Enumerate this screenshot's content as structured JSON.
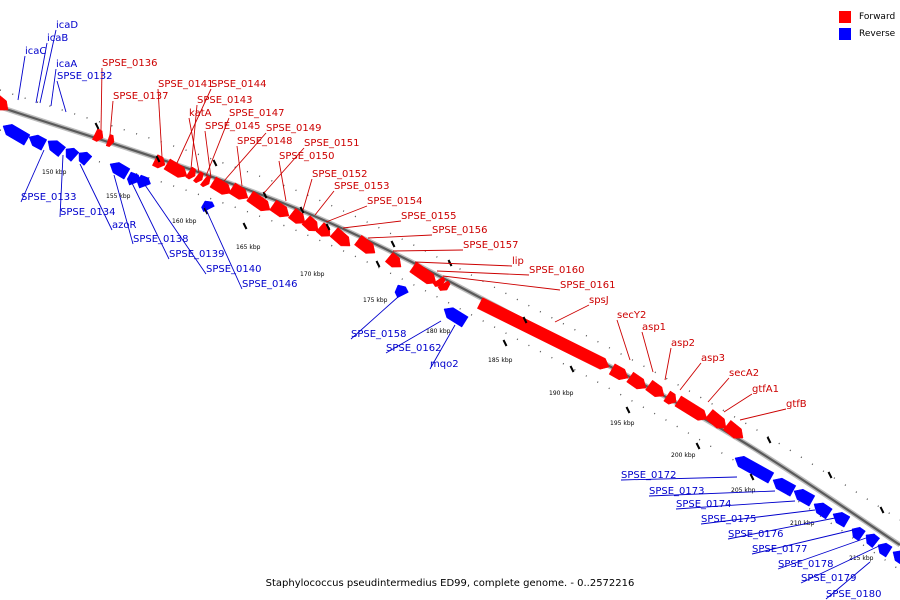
{
  "legend": [
    {
      "label": "Forward",
      "color": "#ff0000"
    },
    {
      "label": "Reverse",
      "color": "#0000ff"
    }
  ],
  "footer": "Staphylococcus pseudintermedius ED99, complete genome. - 0..2572216",
  "ticks": [
    "150 kbp",
    "155 kbp",
    "160 kbp",
    "165 kbp",
    "170 kbp",
    "175 kbp",
    "180 kbp",
    "185 kbp",
    "190 kbp",
    "195 kbp",
    "200 kbp",
    "205 kbp",
    "210 kbp",
    "215 kbp"
  ],
  "colors": {
    "forward": "#ff0000",
    "reverse": "#0000ff",
    "forward_label": "#cc0000",
    "reverse_label": "#0000cc"
  },
  "forward_genes": [
    "SPSE_0136",
    "SPSE_0137",
    "SPSE_0141",
    "SPSE_0144",
    "SPSE_0143",
    "katA",
    "SPSE_0147",
    "SPSE_0145",
    "SPSE_0149",
    "SPSE_0148",
    "SPSE_0151",
    "SPSE_0150",
    "SPSE_0152",
    "SPSE_0153",
    "SPSE_0154",
    "SPSE_0155",
    "SPSE_0156",
    "SPSE_0157",
    "lip",
    "SPSE_0160",
    "SPSE_0161",
    "spsJ",
    "secY2",
    "asp1",
    "asp2",
    "asp3",
    "secA2",
    "gtfA1",
    "gtfB"
  ],
  "reverse_genes": [
    "icaD",
    "icaB",
    "icaC",
    "icaA",
    "SPSE_0132",
    "SPSE_0133",
    "SPSE_0134",
    "azoR",
    "SPSE_0138",
    "SPSE_0139",
    "SPSE_0140",
    "SPSE_0146",
    "SPSE_0158",
    "SPSE_0162",
    "mqo2",
    "SPSE_0172",
    "SPSE_0173",
    "SPSE_0174",
    "SPSE_0175",
    "SPSE_0176",
    "SPSE_0177",
    "SPSE_0178",
    "SPSE_0179",
    "SPSE_0180"
  ]
}
